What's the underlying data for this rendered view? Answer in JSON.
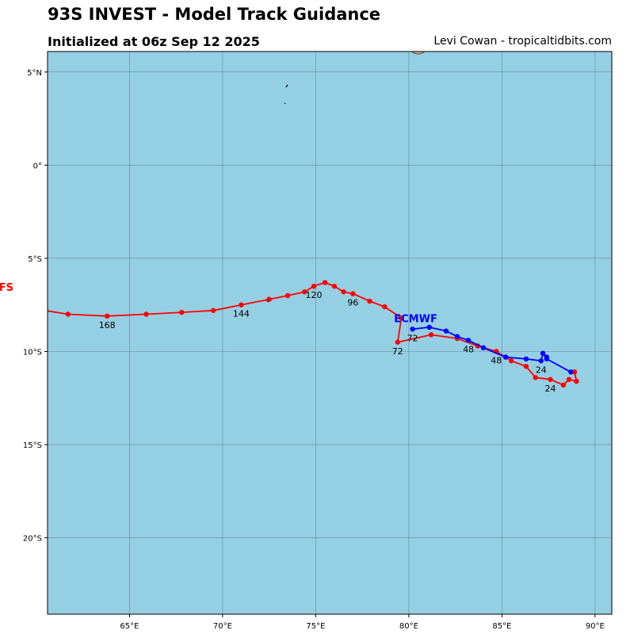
{
  "header": {
    "title": "93S INVEST - Model Track Guidance",
    "subtitle": "Initialized at 06z Sep 12 2025",
    "credit": "Levi Cowan - tropicaltidbits.com"
  },
  "colors": {
    "ocean": "#95cfe3",
    "land": "#d3a78e",
    "grid": "#4a6e7e",
    "gfs": "#ff0000",
    "ecmwf": "#0000ff"
  },
  "map": {
    "lon_range": [
      60.6,
      90.9
    ],
    "lat_range": [
      -24.1,
      6.1
    ],
    "lon_ticks": [
      {
        "value": 65,
        "label": "65°E"
      },
      {
        "value": 70,
        "label": "70°E"
      },
      {
        "value": 75,
        "label": "75°E"
      },
      {
        "value": 80,
        "label": "80°E"
      },
      {
        "value": 85,
        "label": "85°E"
      },
      {
        "value": 90,
        "label": "90°E"
      }
    ],
    "lat_ticks": [
      {
        "value": 5,
        "label": "5°N"
      },
      {
        "value": 0,
        "label": "0°"
      },
      {
        "value": -5,
        "label": "5°S"
      },
      {
        "value": -10,
        "label": "10°S"
      },
      {
        "value": -15,
        "label": "15°S"
      },
      {
        "value": -20,
        "label": "20°S"
      }
    ]
  },
  "tracks": [
    {
      "model": "GFS",
      "label": "GFS",
      "color": "#ff0000",
      "points": [
        {
          "hour": 0,
          "lon": 88.9,
          "lat": -11.1
        },
        {
          "hour": 6,
          "lon": 89.0,
          "lat": -11.6
        },
        {
          "hour": 12,
          "lon": 88.6,
          "lat": -11.5
        },
        {
          "hour": 18,
          "lon": 88.3,
          "lat": -11.8
        },
        {
          "hour": 24,
          "lon": 87.6,
          "lat": -11.5
        },
        {
          "hour": 30,
          "lon": 86.8,
          "lat": -11.4
        },
        {
          "hour": 36,
          "lon": 86.3,
          "lat": -10.8
        },
        {
          "hour": 42,
          "lon": 85.5,
          "lat": -10.5
        },
        {
          "hour": 48,
          "lon": 84.7,
          "lat": -10.0
        },
        {
          "hour": 54,
          "lon": 83.7,
          "lat": -9.7
        },
        {
          "hour": 60,
          "lon": 82.6,
          "lat": -9.3
        },
        {
          "hour": 66,
          "lon": 81.2,
          "lat": -9.1
        },
        {
          "hour": 72,
          "lon": 79.4,
          "lat": -9.5
        },
        {
          "hour": 78,
          "lon": 79.6,
          "lat": -8.2
        },
        {
          "hour": 84,
          "lon": 78.7,
          "lat": -7.6
        },
        {
          "hour": 90,
          "lon": 77.9,
          "lat": -7.3
        },
        {
          "hour": 96,
          "lon": 77.0,
          "lat": -6.9
        },
        {
          "hour": 102,
          "lon": 76.5,
          "lat": -6.8
        },
        {
          "hour": 108,
          "lon": 76.0,
          "lat": -6.5
        },
        {
          "hour": 114,
          "lon": 75.5,
          "lat": -6.3
        },
        {
          "hour": 120,
          "lon": 74.9,
          "lat": -6.5
        },
        {
          "hour": 126,
          "lon": 74.4,
          "lat": -6.8
        },
        {
          "hour": 132,
          "lon": 73.5,
          "lat": -7.0
        },
        {
          "hour": 138,
          "lon": 72.5,
          "lat": -7.2
        },
        {
          "hour": 144,
          "lon": 71.0,
          "lat": -7.5
        },
        {
          "hour": 150,
          "lon": 69.5,
          "lat": -7.8
        },
        {
          "hour": 156,
          "lon": 67.8,
          "lat": -7.9
        },
        {
          "hour": 162,
          "lon": 65.9,
          "lat": -8.0
        },
        {
          "hour": 168,
          "lon": 63.8,
          "lat": -8.1
        },
        {
          "hour": 174,
          "lon": 61.7,
          "lat": -8.0
        },
        {
          "hour": 180,
          "lon": 58.6,
          "lat": -7.5
        }
      ],
      "hour_labels": [
        {
          "hour": 24,
          "text": "24"
        },
        {
          "hour": 48,
          "text": "48"
        },
        {
          "hour": 72,
          "text": "72"
        },
        {
          "hour": 96,
          "text": "96"
        },
        {
          "hour": 120,
          "text": "120"
        },
        {
          "hour": 144,
          "text": "144"
        },
        {
          "hour": 168,
          "text": "168"
        }
      ]
    },
    {
      "model": "ECMWF",
      "label": "ECMWF",
      "color": "#0000ff",
      "points": [
        {
          "hour": 0,
          "lon": 88.7,
          "lat": -11.1
        },
        {
          "hour": 6,
          "lon": 87.4,
          "lat": -10.4
        },
        {
          "hour": 12,
          "lon": 87.4,
          "lat": -10.3
        },
        {
          "hour": 18,
          "lon": 87.2,
          "lat": -10.1
        },
        {
          "hour": 24,
          "lon": 87.1,
          "lat": -10.5
        },
        {
          "hour": 30,
          "lon": 86.3,
          "lat": -10.4
        },
        {
          "hour": 36,
          "lon": 85.2,
          "lat": -10.3
        },
        {
          "hour": 42,
          "lon": 84.0,
          "lat": -9.8
        },
        {
          "hour": 48,
          "lon": 83.2,
          "lat": -9.4
        },
        {
          "hour": 54,
          "lon": 82.6,
          "lat": -9.2
        },
        {
          "hour": 60,
          "lon": 82.0,
          "lat": -8.9
        },
        {
          "hour": 66,
          "lon": 81.1,
          "lat": -8.7
        },
        {
          "hour": 72,
          "lon": 80.2,
          "lat": -8.8
        }
      ],
      "hour_labels": [
        {
          "hour": 24,
          "text": "24"
        },
        {
          "hour": 48,
          "text": "48"
        },
        {
          "hour": 72,
          "text": "72"
        }
      ]
    }
  ]
}
